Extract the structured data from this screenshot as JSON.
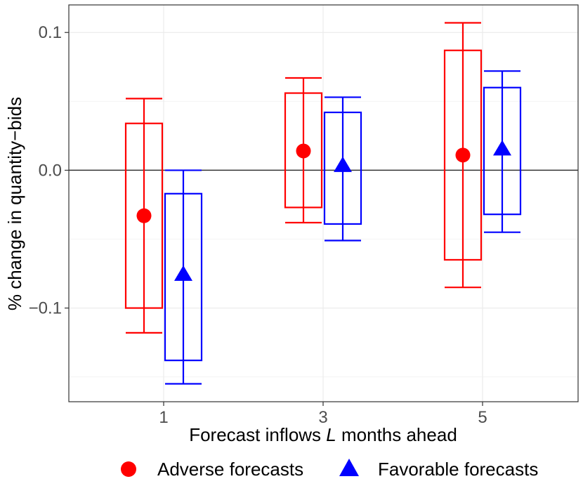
{
  "chart_data": {
    "type": "boxplot",
    "x_categories": [
      "1",
      "3",
      "5"
    ],
    "xlabel_prefix": "Forecast inflows ",
    "xlabel_var": "L",
    "xlabel_suffix": " months ahead",
    "ylabel": "% change in quantity−bids",
    "ylim": [
      -0.168,
      0.12
    ],
    "y_ticks": [
      -0.1,
      0.0,
      0.1
    ],
    "y_tick_labels": [
      "−0.1",
      "0.0",
      "0.1"
    ],
    "reference_line": 0.0,
    "grid": true,
    "series": [
      {
        "name": "Adverse forecasts",
        "color": "#ff0000",
        "marker": "circle",
        "points": [
          {
            "x": "1",
            "estimate": -0.033,
            "box_low": -0.1,
            "box_high": 0.034,
            "whisker_low": -0.118,
            "whisker_high": 0.052
          },
          {
            "x": "3",
            "estimate": 0.014,
            "box_low": -0.027,
            "box_high": 0.056,
            "whisker_low": -0.038,
            "whisker_high": 0.067
          },
          {
            "x": "5",
            "estimate": 0.011,
            "box_low": -0.065,
            "box_high": 0.087,
            "whisker_low": -0.085,
            "whisker_high": 0.107
          }
        ]
      },
      {
        "name": "Favorable forecasts",
        "color": "#0000ff",
        "marker": "triangle",
        "points": [
          {
            "x": "1",
            "estimate": -0.076,
            "box_low": -0.138,
            "box_high": -0.017,
            "whisker_low": -0.155,
            "whisker_high": 0.0
          },
          {
            "x": "3",
            "estimate": 0.003,
            "box_low": -0.039,
            "box_high": 0.042,
            "whisker_low": -0.051,
            "whisker_high": 0.053
          },
          {
            "x": "5",
            "estimate": 0.015,
            "box_low": -0.032,
            "box_high": 0.06,
            "whisker_low": -0.045,
            "whisker_high": 0.072
          }
        ]
      }
    ],
    "legend": [
      {
        "label": "Adverse forecasts",
        "marker": "circle",
        "color": "#ff0000"
      },
      {
        "label": "Favorable forecasts",
        "marker": "triangle",
        "color": "#0000ff"
      }
    ],
    "legend_position": "bottom"
  }
}
